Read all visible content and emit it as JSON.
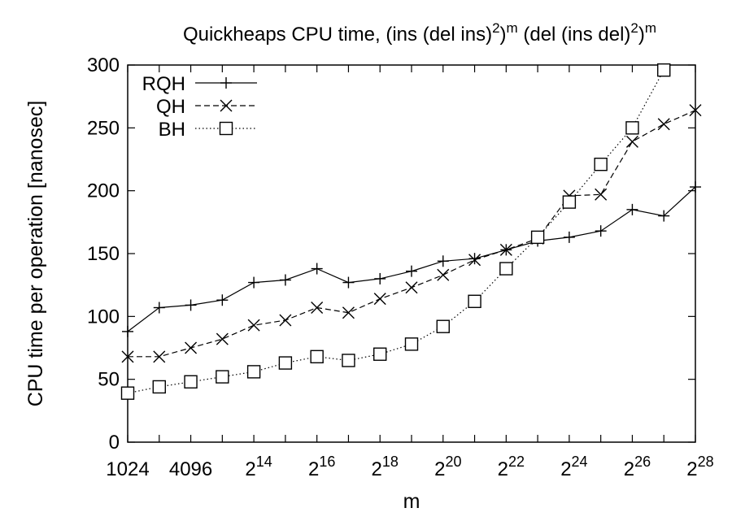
{
  "chart_data": {
    "type": "line",
    "title": {
      "prefix": "Quickheaps CPU time, (ins (del ins)",
      "sup1": "2",
      "mid1": ")",
      "sup2": "m",
      "mid2": " (del (ins del)",
      "sup3": "2",
      "mid3": ")",
      "sup4": "m"
    },
    "xlabel": "m",
    "ylabel": "CPU time per operation [nanosec]",
    "x_scale": "log2",
    "xlim": [
      1024,
      268435456
    ],
    "ylim": [
      0,
      300
    ],
    "grid": false,
    "legend_position": "top-left",
    "x_ticks": [
      {
        "value": 1024,
        "base": "1024",
        "exp": ""
      },
      {
        "value": 4096,
        "base": "4096",
        "exp": ""
      },
      {
        "value": 16384,
        "base": "2",
        "exp": "14"
      },
      {
        "value": 65536,
        "base": "2",
        "exp": "16"
      },
      {
        "value": 262144,
        "base": "2",
        "exp": "18"
      },
      {
        "value": 1048576,
        "base": "2",
        "exp": "20"
      },
      {
        "value": 4194304,
        "base": "2",
        "exp": "22"
      },
      {
        "value": 16777216,
        "base": "2",
        "exp": "24"
      },
      {
        "value": 67108864,
        "base": "2",
        "exp": "26"
      },
      {
        "value": 268435456,
        "base": "2",
        "exp": "28"
      }
    ],
    "y_ticks": [
      "0",
      "50",
      "100",
      "150",
      "200",
      "250",
      "300"
    ],
    "x": [
      1024,
      2048,
      4096,
      8192,
      16384,
      32768,
      65536,
      131072,
      262144,
      524288,
      1048576,
      2097152,
      4194304,
      8388608,
      16777216,
      33554432,
      67108864,
      134217728,
      268435456
    ],
    "series": [
      {
        "name": "RQH",
        "marker": "plus",
        "dash": "solid",
        "values": [
          88,
          107,
          109,
          113,
          127,
          129,
          138,
          127,
          130,
          136,
          144,
          146,
          153,
          160,
          163,
          168,
          185,
          180,
          203
        ]
      },
      {
        "name": "QH",
        "marker": "cross",
        "dash": "dashed",
        "values": [
          68,
          68,
          75,
          82,
          93,
          97,
          107,
          103,
          114,
          123,
          133,
          145,
          153,
          162,
          196,
          197,
          239,
          253,
          264
        ]
      },
      {
        "name": "BH",
        "marker": "square",
        "dash": "dotted",
        "values": [
          39,
          44,
          48,
          52,
          56,
          63,
          68,
          65,
          70,
          78,
          92,
          112,
          138,
          163,
          191,
          221,
          250,
          296,
          null
        ]
      }
    ]
  }
}
